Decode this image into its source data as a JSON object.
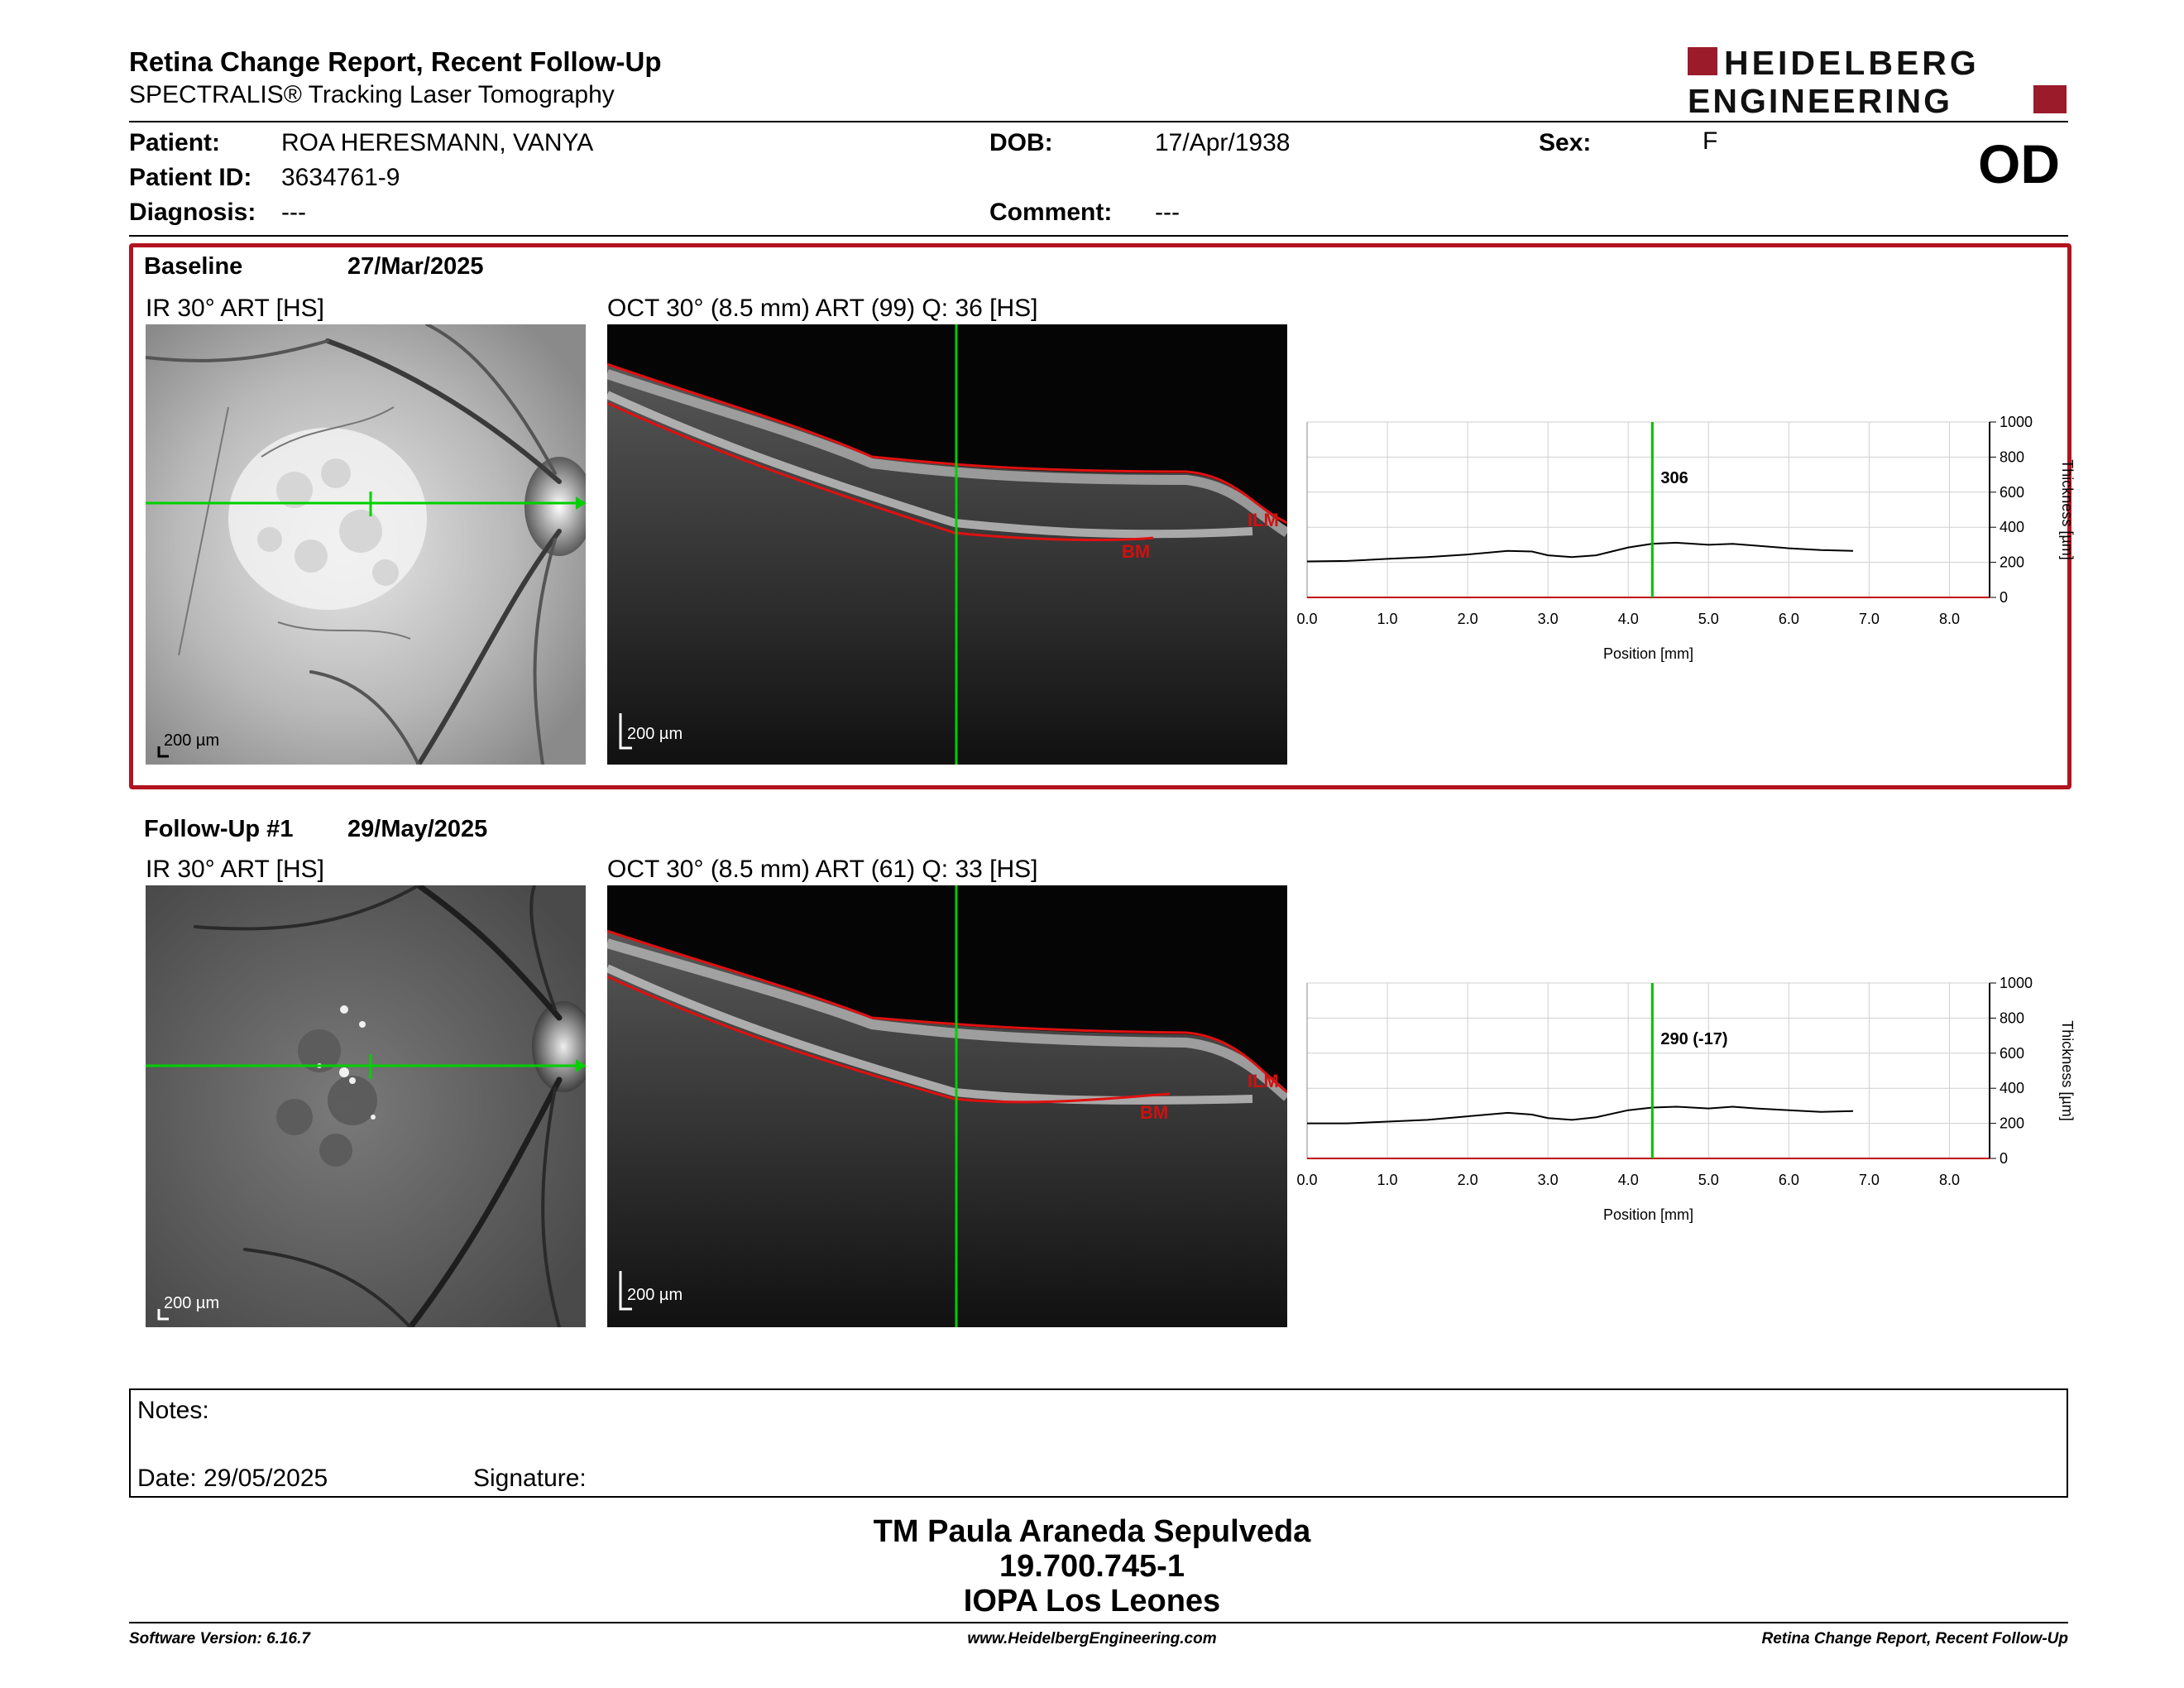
{
  "header": {
    "title": "Retina Change Report, Recent Follow-Up",
    "subtitle": "SPECTRALIS® Tracking Laser Tomography",
    "logo_line1": "HEIDELBERG",
    "logo_line2": "ENGINEERING",
    "brand_color": "#9b1b2b"
  },
  "patient": {
    "patient_label": "Patient:",
    "patient_value": "ROA HERESMANN, VANYA",
    "id_label": "Patient ID:",
    "id_value": "3634761-9",
    "diagnosis_label": "Diagnosis:",
    "diagnosis_value": "---",
    "dob_label": "DOB:",
    "dob_value": "17/Apr/1938",
    "comment_label": "Comment:",
    "comment_value": "---",
    "sex_label": "Sex:",
    "sex_value": "F",
    "eye": "OD"
  },
  "baseline": {
    "label": "Baseline",
    "date": "27/Mar/2025",
    "ir_caption": "IR 30° ART [HS]",
    "oct_caption": "OCT 30° (8.5 mm) ART (99) Q: 36 [HS]",
    "scale_ir": "200 µm",
    "scale_oct": "200 µm",
    "ilm_label": "ILM",
    "bm_label": "BM"
  },
  "followup": {
    "label": "Follow-Up #1",
    "date": "29/May/2025",
    "ir_caption": "IR 30° ART [HS]",
    "oct_caption": "OCT 30° (8.5 mm) ART (61) Q: 33 [HS]",
    "scale_ir": "200 µm",
    "scale_oct": "200 µm",
    "ilm_label": "ILM",
    "bm_label": "BM"
  },
  "notes": {
    "notes_label": "Notes:",
    "date_label": "Date: 29/05/2025",
    "signature_label": "Signature:"
  },
  "signature_block": {
    "name": "TM Paula Araneda Sepulveda",
    "rut": "19.700.745-1",
    "institution": "IOPA Los Leones"
  },
  "footer": {
    "software": "Software Version: 6.16.7",
    "url": "www.HeidelbergEngineering.com",
    "report": "Retina Change Report, Recent Follow-Up"
  },
  "chart_data": [
    {
      "type": "line",
      "xlabel": "Position [mm]",
      "ylabel": "Thickness [µm]",
      "xlim": [
        0,
        8.5
      ],
      "ylim": [
        0,
        1000
      ],
      "xticks": [
        "0.0",
        "1.0",
        "2.0",
        "3.0",
        "4.0",
        "5.0",
        "6.0",
        "7.0",
        "8.0"
      ],
      "yticks": [
        "0",
        "200",
        "400",
        "600",
        "800",
        "1000"
      ],
      "grid": true,
      "cursor_x": 4.3,
      "cursor_label": "306",
      "series": [
        {
          "x": [
            0,
            0.5,
            1.0,
            1.5,
            2.0,
            2.5,
            2.8,
            3.0,
            3.3,
            3.6,
            4.0,
            4.3,
            4.6,
            5.0,
            5.3,
            5.6,
            6.0,
            6.4,
            6.8
          ],
          "y": [
            205,
            208,
            220,
            230,
            245,
            265,
            262,
            240,
            230,
            240,
            285,
            306,
            312,
            300,
            305,
            295,
            280,
            270,
            265
          ]
        }
      ]
    },
    {
      "type": "line",
      "xlabel": "Position [mm]",
      "ylabel": "Thickness [µm]",
      "xlim": [
        0,
        8.5
      ],
      "ylim": [
        0,
        1000
      ],
      "xticks": [
        "0.0",
        "1.0",
        "2.0",
        "3.0",
        "4.0",
        "5.0",
        "6.0",
        "7.0",
        "8.0"
      ],
      "yticks": [
        "0",
        "200",
        "400",
        "600",
        "800",
        "1000"
      ],
      "grid": true,
      "cursor_x": 4.3,
      "cursor_label": "290 (-17)",
      "series": [
        {
          "x": [
            0,
            0.5,
            1.0,
            1.5,
            2.0,
            2.5,
            2.8,
            3.0,
            3.3,
            3.6,
            4.0,
            4.3,
            4.6,
            5.0,
            5.3,
            5.6,
            6.0,
            6.4,
            6.8
          ],
          "y": [
            200,
            200,
            210,
            220,
            240,
            260,
            250,
            230,
            220,
            235,
            275,
            290,
            295,
            285,
            295,
            285,
            275,
            265,
            270
          ]
        }
      ]
    }
  ]
}
